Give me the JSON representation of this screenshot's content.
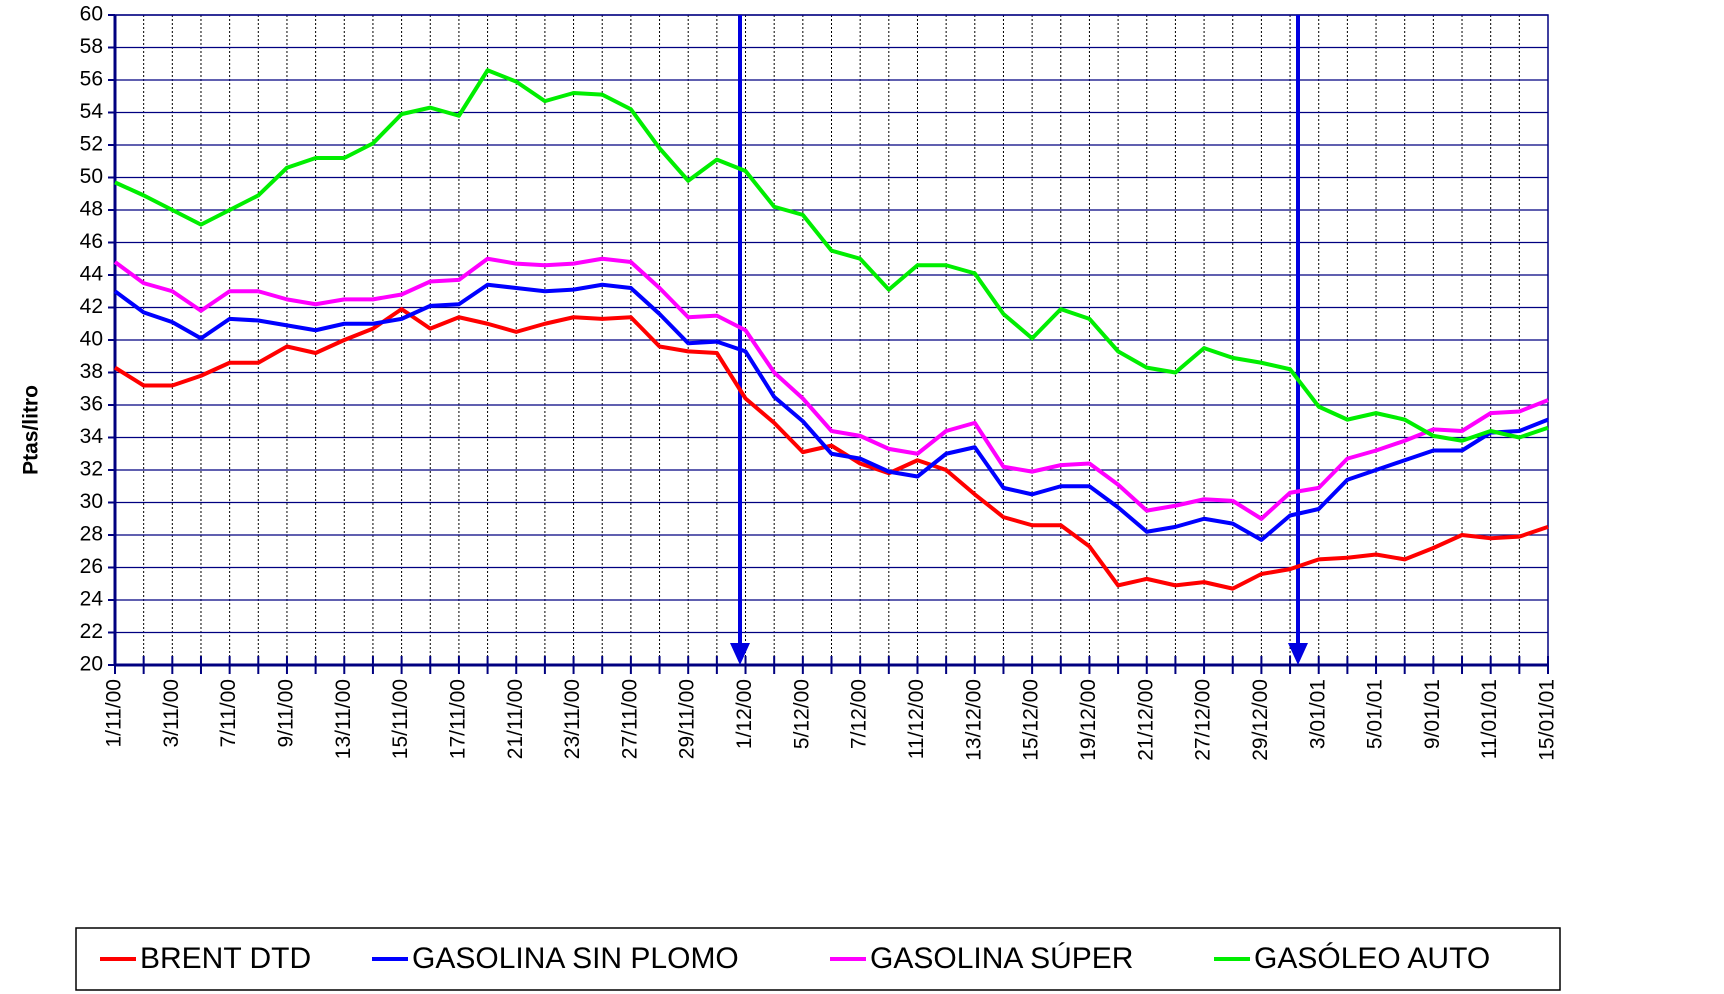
{
  "chart_data": {
    "type": "line",
    "y_label": "Ptas/litro",
    "categories": [
      "1/11/00",
      null,
      "3/11/00",
      null,
      "7/11/00",
      null,
      "9/11/00",
      null,
      "13/11/00",
      null,
      "15/11/00",
      null,
      "17/11/00",
      null,
      "21/11/00",
      null,
      "23/11/00",
      null,
      "27/11/00",
      null,
      "29/11/00",
      null,
      "1/12/00",
      null,
      "5/12/00",
      null,
      "7/12/00",
      null,
      "11/12/00",
      null,
      "13/12/00",
      null,
      "15/12/00",
      null,
      "19/12/00",
      null,
      "21/12/00",
      null,
      "27/12/00",
      null,
      "29/12/00",
      null,
      "3/01/01",
      null,
      "5/01/01",
      null,
      "9/01/01",
      null,
      "11/01/01",
      null,
      "15/01/01"
    ],
    "series": [
      {
        "name": "BRENT DTD",
        "color": "#ff0000",
        "values": [
          38.3,
          37.2,
          37.2,
          37.8,
          38.6,
          38.6,
          39.6,
          39.2,
          40.0,
          40.7,
          41.9,
          40.7,
          41.4,
          41.0,
          40.5,
          41.0,
          41.4,
          41.3,
          41.4,
          39.6,
          39.3,
          39.2,
          36.4,
          34.9,
          33.1,
          33.5,
          32.4,
          31.8,
          32.6,
          32.0,
          30.5,
          29.1,
          28.6,
          28.6,
          27.3,
          24.9,
          25.3,
          24.9,
          25.1,
          24.7,
          25.6,
          25.9,
          26.5,
          26.6,
          26.8,
          26.5,
          27.2,
          28.0,
          27.8,
          27.9,
          28.5
        ]
      },
      {
        "name": "GASOLINA SIN PLOMO",
        "color": "#0000ff",
        "values": [
          43.0,
          41.7,
          41.1,
          40.1,
          41.3,
          41.2,
          40.9,
          40.6,
          41.0,
          41.0,
          41.3,
          42.1,
          42.2,
          43.4,
          43.2,
          43.0,
          43.1,
          43.4,
          43.2,
          41.6,
          39.8,
          39.9,
          39.3,
          36.5,
          35.0,
          33.0,
          32.7,
          31.9,
          31.6,
          33.0,
          33.4,
          30.9,
          30.5,
          31.0,
          31.0,
          29.7,
          28.2,
          28.5,
          29.0,
          28.7,
          27.7,
          29.2,
          29.6,
          31.4,
          32.0,
          32.6,
          33.2,
          33.2,
          34.3,
          34.4,
          35.1
        ]
      },
      {
        "name": "GASOLINA SÚPER",
        "color": "#ff00ff",
        "values": [
          44.8,
          43.5,
          43.0,
          41.8,
          43.0,
          43.0,
          42.5,
          42.2,
          42.5,
          42.5,
          42.8,
          43.6,
          43.7,
          45.0,
          44.7,
          44.6,
          44.7,
          45.0,
          44.8,
          43.2,
          41.4,
          41.5,
          40.6,
          38.0,
          36.4,
          34.4,
          34.1,
          33.3,
          33.0,
          34.4,
          34.9,
          32.2,
          31.9,
          32.3,
          32.4,
          31.1,
          29.5,
          29.8,
          30.2,
          30.1,
          29.0,
          30.6,
          30.9,
          32.7,
          33.2,
          33.8,
          34.5,
          34.4,
          35.5,
          35.6,
          36.3
        ]
      },
      {
        "name": "GASÓLEO AUTO",
        "color": "#00ee00",
        "values": [
          49.7,
          48.9,
          48.0,
          47.1,
          48.0,
          48.9,
          50.6,
          51.2,
          51.2,
          52.1,
          53.9,
          54.3,
          53.8,
          56.6,
          55.9,
          54.7,
          55.2,
          55.1,
          54.2,
          51.8,
          49.8,
          51.1,
          50.4,
          48.2,
          47.7,
          45.5,
          45.0,
          43.1,
          44.6,
          44.6,
          44.1,
          41.6,
          40.1,
          41.9,
          41.3,
          39.3,
          38.3,
          38.0,
          39.5,
          38.9,
          38.6,
          38.2,
          35.9,
          35.1,
          35.5,
          35.1,
          34.1,
          33.8,
          34.4,
          34.0,
          34.6
        ]
      }
    ],
    "ylim": [
      20,
      60
    ],
    "yticks": [
      20,
      22,
      24,
      26,
      28,
      30,
      32,
      34,
      36,
      38,
      40,
      42,
      44,
      46,
      48,
      50,
      52,
      54,
      56,
      58,
      60
    ],
    "grid": true,
    "legend": "bottom"
  }
}
